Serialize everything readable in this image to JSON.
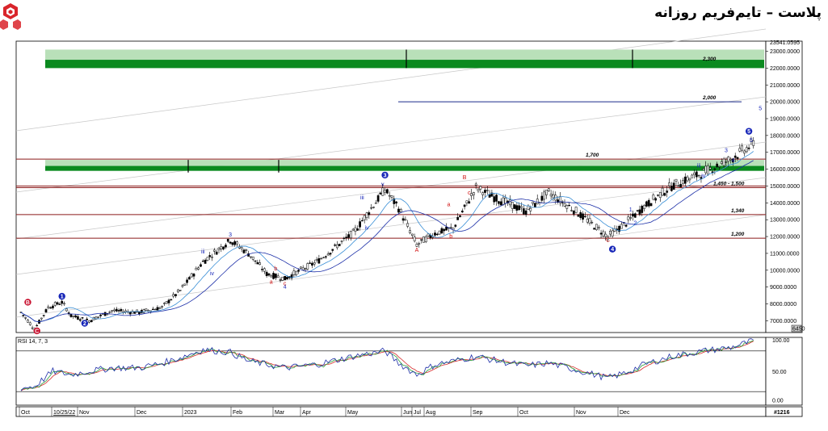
{
  "title": "پلاست – تایم‌فریم روزانه",
  "chart_data": {
    "type": "candlestick",
    "y_axis": {
      "ticks": [
        "23000.0000",
        "22000.0000",
        "21000.0000",
        "20000.0000",
        "19000.0000",
        "18000.0000",
        "17000.0000",
        "16000.0000",
        "15000.0000",
        "14000.0000",
        "13000.0000",
        "12000.0000",
        "11000.0000",
        "10000.0000",
        "9000.0000",
        "8000.0000",
        "7000.0000"
      ],
      "top_label": "23541.0595",
      "bottom_label": "6450",
      "range": [
        6300,
        23600
      ]
    },
    "x_axis": {
      "labels": [
        "Oct",
        "10/25/22",
        "Nov",
        "Dec",
        "2023",
        "Feb",
        "Mar",
        "Apr",
        "May",
        "Jun",
        "Jul",
        "Aug",
        "Sep",
        "Oct",
        "Nov",
        "Dec"
      ],
      "corner": "#1216"
    },
    "horizontal_levels": [
      {
        "label": "2,300",
        "value": 22300
      },
      {
        "label": "2,000",
        "value": 20000
      },
      {
        "label": "1,700",
        "value": 16600
      },
      {
        "label": "1,450 - 1,500",
        "value": 14900
      },
      {
        "label": "1,340",
        "value": 13300
      },
      {
        "label": "1,200",
        "value": 11900
      }
    ],
    "wave_labels": [
      {
        "t": "1",
        "v": 8450,
        "i": 18,
        "c": "circle"
      },
      {
        "t": "2",
        "v": 6850,
        "i": 28,
        "c": "circle"
      },
      {
        "t": "3",
        "v": 15650,
        "i": 160,
        "c": "circle"
      },
      {
        "t": "4",
        "v": 11250,
        "i": 260,
        "c": "circle"
      },
      {
        "t": "5",
        "v": 18250,
        "i": 320,
        "c": "circle"
      },
      {
        "t": "B",
        "v": 8100,
        "i": 3,
        "c": "circle-red"
      },
      {
        "t": "C",
        "v": 6400,
        "i": 7,
        "c": "circle-red"
      },
      {
        "t": "3",
        "v": 12000,
        "i": 92,
        "c": "blue"
      },
      {
        "t": "iii",
        "v": 11000,
        "i": 80,
        "c": "blue"
      },
      {
        "t": "iv",
        "v": 9700,
        "i": 84,
        "c": "blue"
      },
      {
        "t": "4",
        "v": 8900,
        "i": 116,
        "c": "blue"
      },
      {
        "t": "a",
        "v": 9200,
        "i": 110,
        "c": "red"
      },
      {
        "t": "b",
        "v": 10000,
        "i": 112,
        "c": "red"
      },
      {
        "t": "c",
        "v": 9100,
        "i": 116,
        "c": "red"
      },
      {
        "t": "iii",
        "v": 14200,
        "i": 150,
        "c": "blue"
      },
      {
        "t": "iv",
        "v": 12400,
        "i": 152,
        "c": "blue"
      },
      {
        "t": "v",
        "v": 15000,
        "i": 159,
        "c": "blue"
      },
      {
        "t": "A",
        "v": 11100,
        "i": 174,
        "c": "red"
      },
      {
        "t": "B",
        "v": 15400,
        "i": 195,
        "c": "red"
      },
      {
        "t": "C",
        "v": 11700,
        "i": 258,
        "c": "red"
      },
      {
        "t": "a",
        "v": 13800,
        "i": 188,
        "c": "red"
      },
      {
        "t": "b",
        "v": 11900,
        "i": 189,
        "c": "red"
      },
      {
        "t": "c",
        "v": 14500,
        "i": 197,
        "c": "red"
      },
      {
        "t": "1",
        "v": 13500,
        "i": 268,
        "c": "blue"
      },
      {
        "t": "2",
        "v": 12700,
        "i": 270,
        "c": "blue"
      },
      {
        "t": "iii",
        "v": 16100,
        "i": 298,
        "c": "blue"
      },
      {
        "t": "iv",
        "v": 15500,
        "i": 300,
        "c": "blue"
      },
      {
        "t": "3",
        "v": 17000,
        "i": 310,
        "c": "blue"
      },
      {
        "t": "4",
        "v": 16400,
        "i": 313,
        "c": "blue"
      },
      {
        "t": "5",
        "v": 17600,
        "i": 321,
        "c": "blue"
      },
      {
        "t": "5",
        "v": 19500,
        "i": 325,
        "c": "blue"
      }
    ],
    "ohlc_anchor_path": [
      [
        0,
        7500
      ],
      [
        6,
        6500
      ],
      [
        12,
        7800
      ],
      [
        18,
        8100
      ],
      [
        22,
        7300
      ],
      [
        30,
        7000
      ],
      [
        40,
        7600
      ],
      [
        52,
        7500
      ],
      [
        62,
        7800
      ],
      [
        70,
        8800
      ],
      [
        80,
        10500
      ],
      [
        92,
        11800
      ],
      [
        100,
        11000
      ],
      [
        108,
        9800
      ],
      [
        116,
        9500
      ],
      [
        130,
        10500
      ],
      [
        146,
        12200
      ],
      [
        160,
        14800
      ],
      [
        166,
        13700
      ],
      [
        174,
        11500
      ],
      [
        182,
        12200
      ],
      [
        190,
        12500
      ],
      [
        200,
        14900
      ],
      [
        210,
        14200
      ],
      [
        222,
        13500
      ],
      [
        232,
        14600
      ],
      [
        244,
        13500
      ],
      [
        258,
        12000
      ],
      [
        266,
        12800
      ],
      [
        274,
        13800
      ],
      [
        286,
        15000
      ],
      [
        300,
        15800
      ],
      [
        312,
        16600
      ],
      [
        322,
        17500
      ]
    ],
    "rsi": {
      "label": "RSI 14, 7, 3",
      "ticks": [
        "100.00",
        "50.00",
        "0.00"
      ],
      "levels": [
        80,
        20
      ],
      "anchor_path": [
        [
          0,
          25
        ],
        [
          6,
          28
        ],
        [
          14,
          50
        ],
        [
          22,
          45
        ],
        [
          30,
          50
        ],
        [
          40,
          55
        ],
        [
          52,
          55
        ],
        [
          62,
          62
        ],
        [
          70,
          70
        ],
        [
          80,
          82
        ],
        [
          92,
          78
        ],
        [
          100,
          65
        ],
        [
          108,
          60
        ],
        [
          116,
          55
        ],
        [
          130,
          60
        ],
        [
          146,
          72
        ],
        [
          160,
          80
        ],
        [
          166,
          62
        ],
        [
          174,
          45
        ],
        [
          182,
          60
        ],
        [
          190,
          65
        ],
        [
          200,
          72
        ],
        [
          210,
          65
        ],
        [
          222,
          58
        ],
        [
          232,
          62
        ],
        [
          244,
          52
        ],
        [
          258,
          40
        ],
        [
          266,
          48
        ],
        [
          274,
          60
        ],
        [
          286,
          72
        ],
        [
          300,
          80
        ],
        [
          312,
          85
        ],
        [
          322,
          95
        ]
      ]
    }
  }
}
